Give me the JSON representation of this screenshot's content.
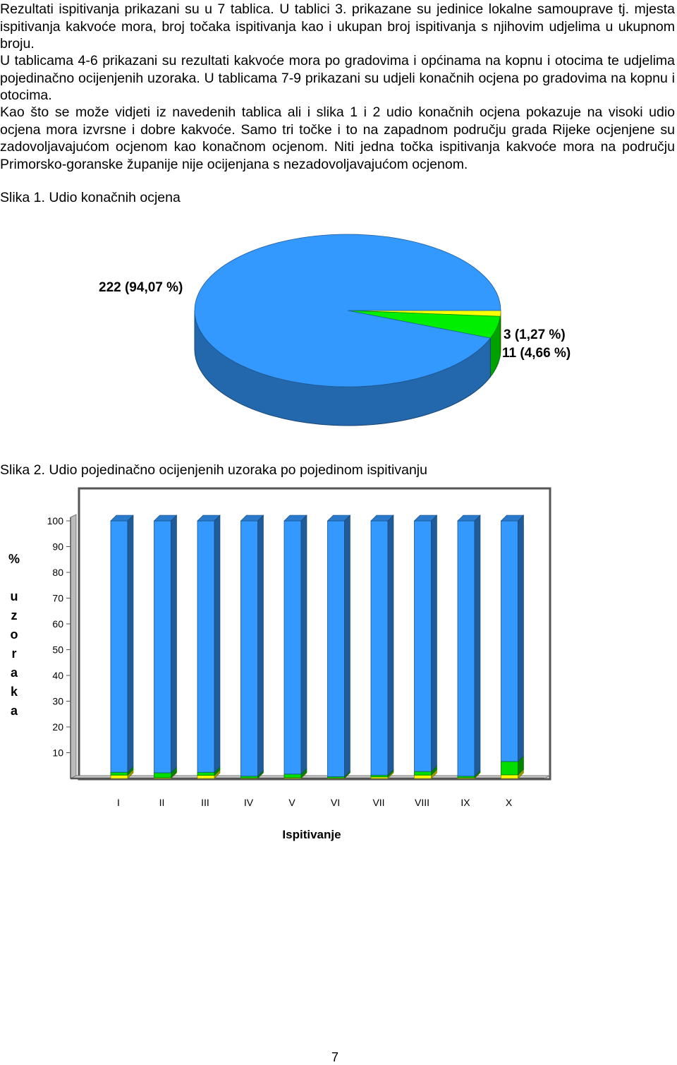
{
  "paragraphs": [
    "Rezultati ispitivanja prikazani su u 7 tablica. U tablici 3. prikazane su jedinice lokalne samouprave tj. mjesta ispitivanja kakvoće mora, broj točaka ispitivanja kao i ukupan broj ispitivanja s njihovim udjelima u ukupnom broju.",
    "U tablicama 4-6 prikazani su rezultati kakvoće mora  po gradovima i općinama na kopnu i otocima te udjelima pojedinačno ocijenjenih uzoraka. U tablicama 7-9 prikazani su udjeli konačnih ocjena po gradovima na kopnu i otocima.",
    "Kao što se može vidjeti iz navedenih tablica ali i slika 1 i 2 udio konačnih ocjena pokazuje na visoki udio ocjena mora izvrsne i dobre kakvoće. Samo tri točke i to na zapadnom području grada Rijeke ocjenjene su zadovoljavajućom ocjenom kao konačnom ocjenom.  Niti jedna točka ispitivanja kakvoće mora na području Primorsko-goranske županije nije ocijenjana s nezadovoljavajućom ocjenom."
  ],
  "captions": {
    "figure1": "Slika 1.  Udio konačnih ocjena",
    "figure2": "Slika 2. Udio pojedinačno ocijenjenih uzoraka po pojedinom ispitivanju"
  },
  "chart_data": [
    {
      "type": "pie",
      "title": "",
      "slices": [
        {
          "label": "222 (94,07 %)",
          "value": 222,
          "percent": 94.07,
          "color": "#3399ff"
        },
        {
          "label": "11 (4,66 %)",
          "value": 11,
          "percent": 4.66,
          "color": "#00ee00"
        },
        {
          "label": "3 (1,27 %)",
          "value": 3,
          "percent": 1.27,
          "color": "#ffff00"
        }
      ],
      "style": "3d"
    },
    {
      "type": "bar",
      "stacked": true,
      "style": "3d",
      "xlabel": "Ispitivanje",
      "ylabel": "% uzoraka",
      "ylabel_chars": [
        "%",
        "u",
        "z",
        "o",
        "r",
        "a",
        "k",
        "a"
      ],
      "yticks": [
        10,
        20,
        30,
        40,
        50,
        60,
        70,
        80,
        90,
        100
      ],
      "ylim": [
        0,
        100
      ],
      "grid": false,
      "categories": [
        "I",
        "II",
        "III",
        "IV",
        "V",
        "VI",
        "VII",
        "VIII",
        "IX",
        "X"
      ],
      "series": [
        {
          "color": "#ffff00",
          "values": [
            1.3,
            0.3,
            1.2,
            0.2,
            0.3,
            0.2,
            0.6,
            1.3,
            0.3,
            1.4
          ]
        },
        {
          "color": "#00dd00",
          "values": [
            1.1,
            1.9,
            1.2,
            0.7,
            1.4,
            0.5,
            0.7,
            1.4,
            0.6,
            5.2
          ]
        },
        {
          "color": "#3399ff",
          "values": [
            97.6,
            97.8,
            97.6,
            99.1,
            98.3,
            99.3,
            98.7,
            97.3,
            99.1,
            93.4
          ]
        }
      ]
    }
  ],
  "page_number": "7"
}
